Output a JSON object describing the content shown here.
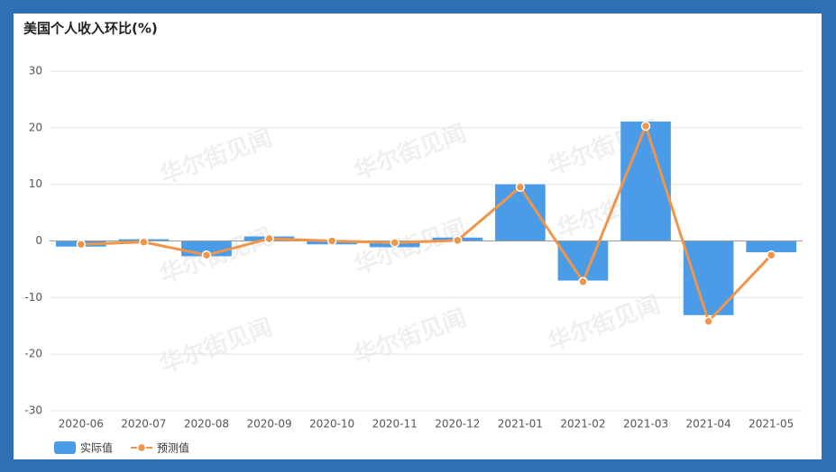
{
  "chart_data": {
    "type": "bar-line",
    "title": "美国个人收入环比(%)",
    "watermark": "华尔街见闻",
    "categories": [
      "2020-06",
      "2020-07",
      "2020-08",
      "2020-09",
      "2020-10",
      "2020-11",
      "2020-12",
      "2021-01",
      "2021-02",
      "2021-03",
      "2021-04",
      "2021-05"
    ],
    "series": [
      {
        "name": "实际值",
        "type": "bar",
        "color": "#4a9ce8",
        "values": [
          -1.0,
          0.3,
          -2.7,
          0.8,
          -0.6,
          -1.1,
          0.6,
          10.0,
          -7.0,
          21.1,
          -13.1,
          -2.0
        ]
      },
      {
        "name": "预测值",
        "type": "line",
        "color": "#f0954a",
        "values": [
          -0.6,
          -0.2,
          -2.5,
          0.4,
          0.0,
          -0.3,
          0.1,
          9.5,
          -7.2,
          20.3,
          -14.2,
          -2.5
        ]
      }
    ],
    "ylim": [
      -30,
      30
    ],
    "yticks": [
      -30,
      -20,
      -10,
      0,
      10,
      20,
      30
    ],
    "grid": true
  }
}
